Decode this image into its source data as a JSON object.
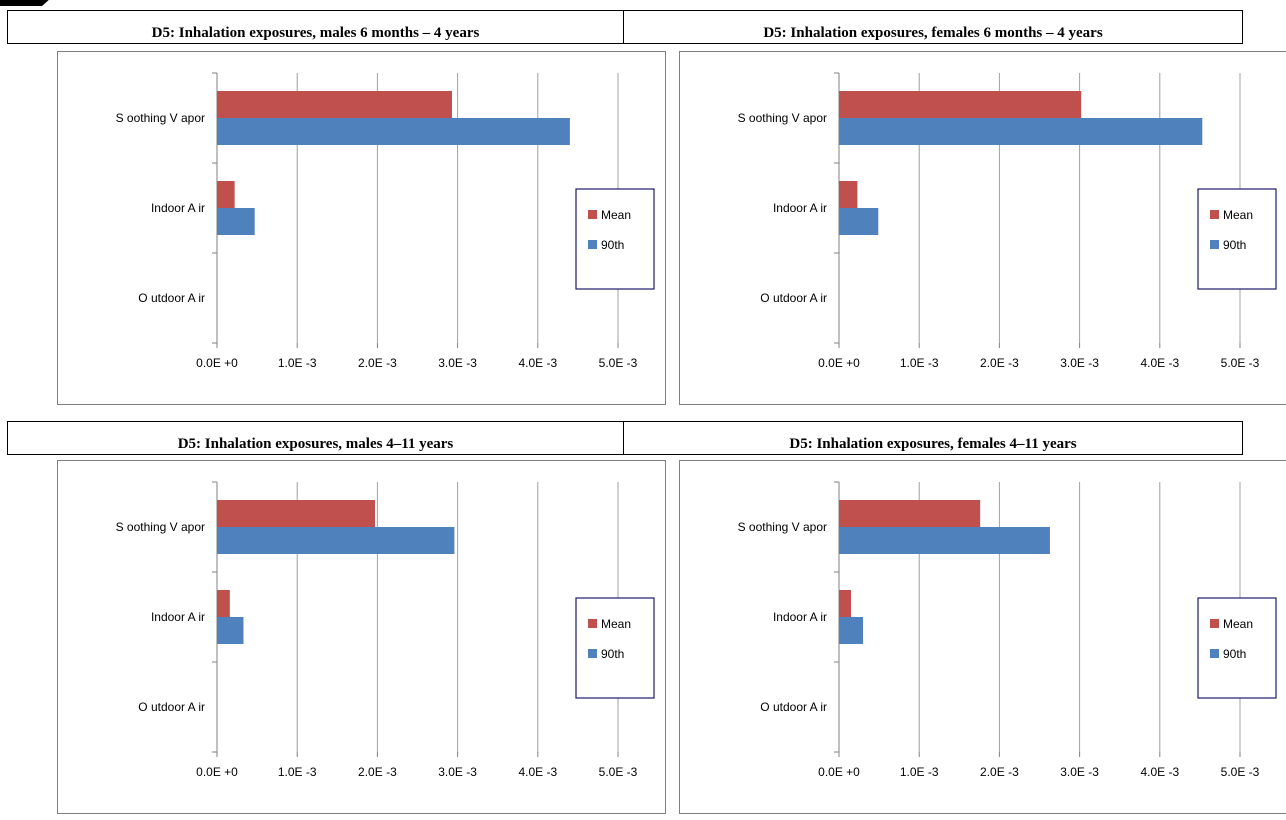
{
  "headers": [
    "D5: Inhalation exposures, males 6 months – 4 years",
    "D5: Inhalation exposures, females 6 months – 4 years",
    "D5: Inhalation exposures, males 4–11 years",
    "D5: Inhalation exposures, females 4–11 years"
  ],
  "colors": {
    "mean": "#c0504d",
    "p90": "#4f81bd",
    "grid": "#a0a0a0",
    "legend_border": "#1f1a6b"
  },
  "chart_data": [
    {
      "type": "bar",
      "orientation": "horizontal",
      "title": "",
      "categories": [
        "S oothing V apor",
        "Indoor A ir",
        "O utdoor A ir"
      ],
      "series": [
        {
          "name": "Mean",
          "values": [
            0.00293,
            0.00022,
            0
          ]
        },
        {
          "name": "90th",
          "values": [
            0.0044,
            0.00047,
            0
          ]
        }
      ],
      "xlim": [
        0,
        0.005
      ],
      "xticks": [
        "0.0E +0",
        "1.0E -3",
        "2.0E -3",
        "3.0E -3",
        "4.0E -3",
        "5.0E -3"
      ],
      "grid": "vertical",
      "legend": "right"
    },
    {
      "type": "bar",
      "orientation": "horizontal",
      "title": "",
      "categories": [
        "S oothing V apor",
        "Indoor A ir",
        "O utdoor A ir"
      ],
      "series": [
        {
          "name": "Mean",
          "values": [
            0.00302,
            0.00023,
            0
          ]
        },
        {
          "name": "90th",
          "values": [
            0.00453,
            0.00049,
            0
          ]
        }
      ],
      "xlim": [
        0,
        0.005
      ],
      "xticks": [
        "0.0E +0",
        "1.0E -3",
        "2.0E -3",
        "3.0E -3",
        "4.0E -3",
        "5.0E -3"
      ],
      "grid": "vertical",
      "legend": "right"
    },
    {
      "type": "bar",
      "orientation": "horizontal",
      "title": "",
      "categories": [
        "S oothing V apor",
        "Indoor A ir",
        "O utdoor A ir"
      ],
      "series": [
        {
          "name": "Mean",
          "values": [
            0.00197,
            0.00016,
            0
          ]
        },
        {
          "name": "90th",
          "values": [
            0.00296,
            0.00033,
            0
          ]
        }
      ],
      "xlim": [
        0,
        0.005
      ],
      "xticks": [
        "0.0E +0",
        "1.0E -3",
        "2.0E -3",
        "3.0E -3",
        "4.0E -3",
        "5.0E -3"
      ],
      "grid": "vertical",
      "legend": "right"
    },
    {
      "type": "bar",
      "orientation": "horizontal",
      "title": "",
      "categories": [
        "S oothing V apor",
        "Indoor A ir",
        "O utdoor A ir"
      ],
      "series": [
        {
          "name": "Mean",
          "values": [
            0.00176,
            0.00015,
            0
          ]
        },
        {
          "name": "90th",
          "values": [
            0.00263,
            0.0003,
            0
          ]
        }
      ],
      "xlim": [
        0,
        0.005
      ],
      "xticks": [
        "0.0E +0",
        "1.0E -3",
        "2.0E -3",
        "3.0E -3",
        "4.0E -3",
        "5.0E -3"
      ],
      "grid": "vertical",
      "legend": "right"
    }
  ]
}
